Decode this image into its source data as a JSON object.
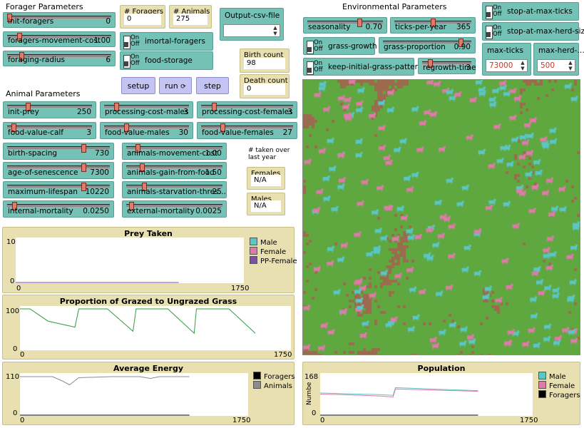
{
  "sections": {
    "forager": "Forager Parameters",
    "animal": "Animal Parameters",
    "environmental": "Environmental Parameters"
  },
  "sliders": {
    "init_foragers": {
      "label": "init-foragers",
      "value": "0",
      "fraction": 0.0
    },
    "foragers_movement_cost": {
      "label": "foragers-movement-cost",
      "value": "1.00",
      "fraction": 0.1
    },
    "foraging_radius": {
      "label": "foraging-radius",
      "value": "6",
      "fraction": 0.12
    },
    "init_prey": {
      "label": "init-prey",
      "value": "250",
      "fraction": 0.23
    },
    "processing_cost_males": {
      "label": "processing-cost-males",
      "value": "3",
      "fraction": 0.12
    },
    "processing_cost_females": {
      "label": "processing-cost-females",
      "value": "3",
      "fraction": 0.12
    },
    "food_value_calf": {
      "label": "food-value-calf",
      "value": "3",
      "fraction": 0.05
    },
    "food_value_males": {
      "label": "food-value-males",
      "value": "30",
      "fraction": 0.25
    },
    "food_value_females": {
      "label": "food-value-females",
      "value": "27",
      "fraction": 0.22
    },
    "birth_spacing": {
      "label": "birth-spacing",
      "value": "730",
      "fraction": 0.75
    },
    "animals_movement_cost": {
      "label": "animals-movement-cost",
      "value": "1.00",
      "fraction": 0.1
    },
    "age_of_senescence": {
      "label": "age-of-senescence",
      "value": "7300",
      "fraction": 0.75
    },
    "animals_gain_from_food": {
      "label": "animals-gain-from-food",
      "value": "1.50",
      "fraction": 0.15
    },
    "maximum_lifespan": {
      "label": "maximum-lifespan",
      "value": "10220",
      "fraction": 0.75
    },
    "animals_starvation_thres": {
      "label": "animals-starvation-thres…",
      "value": "25",
      "fraction": 0.17
    },
    "internal_mortality": {
      "label": "internal-mortality",
      "value": "0.0250",
      "fraction": 0.05
    },
    "external_mortality": {
      "label": "external-mortality",
      "value": "0.0025",
      "fraction": 0.03
    },
    "seasonality": {
      "label": "seasonality",
      "value": "0.70",
      "fraction": 0.7
    },
    "ticks_per_year": {
      "label": "ticks-per-year",
      "value": "365",
      "fraction": 0.5
    },
    "grass_proportion": {
      "label": "grass-proportion",
      "value": "0.90",
      "fraction": 0.9
    },
    "regrowth_time": {
      "label": "regrowth-time",
      "value": "3",
      "fraction": 0.12
    }
  },
  "switches": {
    "on": "On",
    "off": "Off",
    "imortal_foragers": {
      "label": "imortal-foragers",
      "state": "off"
    },
    "food_storage": {
      "label": "food-storage",
      "state": "off"
    },
    "grass_growth": {
      "label": "grass-growth",
      "state": "off"
    },
    "keep_initial_grass_pattern": {
      "label": "keep-initial-grass-pattern",
      "state": "off"
    },
    "stop_at_max_ticks": {
      "label": "stop-at-max-ticks",
      "state": "off"
    },
    "stop_at_max_herd_size": {
      "label": "stop-at-max-herd-size",
      "state": "off"
    }
  },
  "monitors": {
    "foragers": {
      "label": "# Foragers",
      "value": "0"
    },
    "animals": {
      "label": "# Animals",
      "value": "275"
    },
    "birth_count": {
      "label": "Birth count",
      "value": "98"
    },
    "death_count": {
      "label": "Death count",
      "value": "0"
    },
    "females": {
      "label": "Females",
      "value": "N/A"
    },
    "males": {
      "label": "Males",
      "value": "N/A"
    }
  },
  "notes": {
    "taken_over_year": "# taken over last year"
  },
  "inputs": {
    "output_csv_file": {
      "label": "Output-csv-file",
      "value": ""
    },
    "max_ticks": {
      "label": "max-ticks",
      "value": "73000"
    },
    "max_herd_size": {
      "label": "max-herd-…",
      "value": "500"
    }
  },
  "buttons": {
    "setup": "setup",
    "run": "run",
    "step": "step"
  },
  "colors": {
    "slider_bg": "#73c2b5",
    "monitor_bg": "#e8e0b0",
    "button_bg": "#c4c4f2",
    "grass": "#5ea83f",
    "soil": "#9c6b4e",
    "male": "#5cc6c6",
    "female": "#e07aa8",
    "pp_female": "#7b4fa6",
    "foragers": "#000000",
    "animals": "#8c8c8c",
    "grazed_line": "#2e9e3e"
  },
  "plots": {
    "prey_taken": {
      "title": "Prey Taken",
      "y_max": "10",
      "y_min": "0",
      "x_min": "0",
      "x_max": "1750",
      "legend": [
        {
          "name": "Male",
          "color": "#5cc6c6"
        },
        {
          "name": "Female",
          "color": "#e07aa8"
        },
        {
          "name": "PP-Female",
          "color": "#7b4fa6"
        }
      ]
    },
    "grazed": {
      "title": "Proportion of Grazed to Ungrazed Grass",
      "y_max": "100",
      "y_min": "0",
      "x_min": "0",
      "x_max": "1750"
    },
    "energy": {
      "title": "Average Energy",
      "y_max": "110",
      "y_min": "0",
      "x_min": "0",
      "x_max": "1750",
      "legend": [
        {
          "name": "Foragers",
          "color": "#000000"
        },
        {
          "name": "Animals",
          "color": "#8c8c8c"
        }
      ]
    },
    "population": {
      "title": "Population",
      "y_max": "168",
      "y_min": "0",
      "x_min": "0",
      "x_max": "1750",
      "ylabel": "Numbe",
      "legend": [
        {
          "name": "Male",
          "color": "#5cc6c6"
        },
        {
          "name": "Female",
          "color": "#e07aa8"
        },
        {
          "name": "Foragers",
          "color": "#000000"
        }
      ]
    }
  },
  "chart_data": [
    {
      "type": "line",
      "title": "Prey Taken",
      "xlim": [
        0,
        1750
      ],
      "ylim": [
        0,
        10
      ],
      "series": [
        {
          "name": "Male",
          "x": [
            0,
            1250
          ],
          "values": [
            0,
            0
          ]
        },
        {
          "name": "Female",
          "x": [
            0,
            1250
          ],
          "values": [
            0,
            0
          ]
        },
        {
          "name": "PP-Female",
          "x": [
            0,
            1250
          ],
          "values": [
            0,
            0
          ]
        }
      ]
    },
    {
      "type": "line",
      "title": "Proportion of Grazed to Ungrazed Grass",
      "xlim": [
        0,
        1750
      ],
      "ylim": [
        0,
        100
      ],
      "series": [
        {
          "name": "",
          "x": [
            0,
            65,
            180,
            355,
            380,
            565,
            730,
            750,
            955,
            1125,
            1140,
            1350,
            1520
          ],
          "values": [
            100,
            100,
            70,
            55,
            100,
            100,
            45,
            100,
            100,
            40,
            100,
            100,
            40
          ]
        }
      ]
    },
    {
      "type": "line",
      "title": "Average Energy",
      "xlim": [
        0,
        1750
      ],
      "ylim": [
        0,
        110
      ],
      "series": [
        {
          "name": "Animals",
          "x": [
            0,
            250,
            330,
            380,
            450,
            700,
            920,
            1000,
            1070,
            1300
          ],
          "values": [
            108,
            108,
            95,
            85,
            105,
            108,
            108,
            103,
            108,
            108
          ]
        },
        {
          "name": "Foragers",
          "x": [
            0,
            1300
          ],
          "values": [
            0,
            0
          ]
        }
      ]
    },
    {
      "type": "line",
      "title": "Population",
      "xlim": [
        0,
        1750
      ],
      "ylim": [
        0,
        168
      ],
      "series": [
        {
          "name": "Male",
          "x": [
            0,
            180,
            500,
            600,
            620,
            900,
            1300
          ],
          "values": [
            95,
            92,
            88,
            85,
            118,
            112,
            105
          ]
        },
        {
          "name": "Female",
          "x": [
            0,
            180,
            500,
            600,
            620,
            900,
            1300
          ],
          "values": [
            90,
            88,
            82,
            78,
            112,
            108,
            102
          ]
        },
        {
          "name": "Foragers",
          "x": [
            0,
            1300
          ],
          "values": [
            0,
            0
          ]
        }
      ]
    }
  ]
}
